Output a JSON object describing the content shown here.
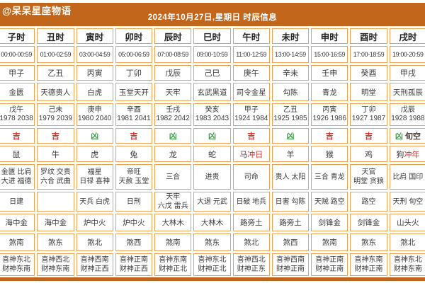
{
  "header": {
    "logo": "@呆呆星座物语",
    "title": "2024年10月27日,星期日 时辰信息"
  },
  "colors": {
    "accent_orange": "#c2661c",
    "border_orange": "#f0a055",
    "ji_red": "#d5332b",
    "xiong_green": "#3fa047"
  },
  "table": {
    "columns": [
      {
        "name": "子时",
        "time": "00:00-00:59",
        "ganzhi": "甲子",
        "star": "金匮",
        "year_ganzhi": "戊午",
        "years": "1978 2038",
        "luck": "吉",
        "luck_type": "ji",
        "luck_extra": "",
        "zodiac": "鼠",
        "zodiac_extra": "",
        "auspicious": [
          "金匮 比肩",
          "大进 福德"
        ],
        "inauspicious": [
          "日建"
        ],
        "nayin": "海中金",
        "sha": "煞南",
        "directions": [
          "喜神东北",
          "财神东南"
        ]
      },
      {
        "name": "丑时",
        "time": "01:00-02:59",
        "ganzhi": "乙丑",
        "star": "天德贵人",
        "year_ganzhi": "己未",
        "years": "1979 2039",
        "luck": "吉",
        "luck_type": "ji",
        "luck_extra": "",
        "zodiac": "牛",
        "zodiac_extra": "",
        "auspicious": [
          "罗纹 交贵",
          "六合 武曲"
        ],
        "inauspicious": [],
        "nayin": "海中金",
        "sha": "煞东",
        "directions": [
          "喜神西北",
          "财神东南"
        ]
      },
      {
        "name": "寅时",
        "time": "03:00-04:59",
        "ganzhi": "丙寅",
        "star": "白虎",
        "year_ganzhi": "庚申",
        "years": "1980 2040",
        "luck": "凶",
        "luck_type": "xiong",
        "luck_extra": "",
        "zodiac": "虎",
        "zodiac_extra": "",
        "auspicious": [
          "福星",
          "日禄 喜神"
        ],
        "inauspicious": [
          "天兵 白虎"
        ],
        "nayin": "炉中火",
        "sha": "煞北",
        "directions": [
          "喜神西南",
          "财神正西"
        ]
      },
      {
        "name": "卯时",
        "time": "05:00-06:59",
        "ganzhi": "丁卯",
        "star": "玉堂天开",
        "year_ganzhi": "辛酉",
        "years": "1981 2041",
        "luck": "吉",
        "luck_type": "ji",
        "luck_extra": "",
        "zodiac": "兔",
        "zodiac_extra": "",
        "auspicious": [
          "帝旺",
          "天赦 玉堂"
        ],
        "inauspicious": [
          "日刑"
        ],
        "nayin": "炉中火",
        "sha": "煞西",
        "directions": [
          "喜神正南",
          "财神正西"
        ]
      },
      {
        "name": "辰时",
        "time": "07:00-08:59",
        "ganzhi": "戊辰",
        "star": "天牢",
        "year_ganzhi": "壬戌",
        "years": "1982 2042",
        "luck": "凶",
        "luck_type": "xiong",
        "luck_extra": "",
        "zodiac": "龙",
        "zodiac_extra": "",
        "auspicious": [
          "三合"
        ],
        "inauspicious": [
          "天牢",
          "六戊 雷兵"
        ],
        "nayin": "大林木",
        "sha": "煞南",
        "directions": [
          "喜神东南",
          "财神正北"
        ]
      },
      {
        "name": "巳时",
        "time": "09:00-10:59",
        "ganzhi": "己巳",
        "star": "玄武黑道",
        "year_ganzhi": "癸亥",
        "years": "1983 2043",
        "luck": "凶",
        "luck_type": "xiong",
        "luck_extra": "",
        "zodiac": "蛇",
        "zodiac_extra": "",
        "auspicious": [
          "进贵"
        ],
        "inauspicious": [
          "大退 元武"
        ],
        "nayin": "大林木",
        "sha": "煞东",
        "directions": [
          "喜神东北",
          "财神正北"
        ]
      },
      {
        "name": "午时",
        "time": "11:00-12:59",
        "ganzhi": "庚午",
        "star": "司令金星",
        "year_ganzhi": "甲子",
        "years": "1924 1984",
        "luck": "吉",
        "luck_type": "ji",
        "luck_extra": "",
        "zodiac": "马",
        "zodiac_extra": "冲日",
        "auspicious": [
          "司命"
        ],
        "inauspicious": [
          "日破 地兵"
        ],
        "nayin": "路旁土",
        "sha": "煞北",
        "directions": [
          "喜神西北",
          "财神正东"
        ]
      },
      {
        "name": "未时",
        "time": "13:00-14:59",
        "ganzhi": "辛未",
        "star": "勾陈",
        "year_ganzhi": "乙丑",
        "years": "1925 1985",
        "luck": "凶",
        "luck_type": "xiong",
        "luck_extra": "",
        "zodiac": "羊",
        "zodiac_extra": "",
        "auspicious": [
          "贵人 太阳"
        ],
        "inauspicious": [
          "日害 勾陈"
        ],
        "nayin": "路旁土",
        "sha": "煞西",
        "directions": [
          "喜神西南",
          "财神正南"
        ]
      },
      {
        "name": "申时",
        "time": "15:00-16:59",
        "ganzhi": "壬申",
        "star": "青龙",
        "year_ganzhi": "丙寅",
        "years": "1926 1986",
        "luck": "吉",
        "luck_type": "ji",
        "luck_extra": "",
        "zodiac": "猴",
        "zodiac_extra": "",
        "auspicious": [
          "三合 青龙"
        ],
        "inauspicious": [
          "天贼 路空"
        ],
        "nayin": "剑锋金",
        "sha": "煞南",
        "directions": [
          "喜神正南",
          "财神正南"
        ]
      },
      {
        "name": "酉时",
        "time": "17:00-18:59",
        "ganzhi": "癸酉",
        "star": "明堂",
        "year_ganzhi": "丁卯",
        "years": "1927 1987",
        "luck": "吉",
        "luck_type": "ji",
        "luck_extra": "",
        "zodiac": "鸡",
        "zodiac_extra": "",
        "auspicious": [
          "天官",
          "明堂 贪狼"
        ],
        "inauspicious": [
          "路空"
        ],
        "nayin": "剑锋金",
        "sha": "煞东",
        "directions": [
          "喜神东南",
          "财神正南"
        ]
      },
      {
        "name": "戌时",
        "time": "19:00-20:59",
        "ganzhi": "甲戌",
        "star": "天刑孤辰",
        "year_ganzhi": "戊辰",
        "years": "1928 1988",
        "luck": "凶",
        "luck_type": "xiong",
        "luck_extra": "旬空",
        "zodiac": "狗",
        "zodiac_extra": "冲年",
        "auspicious": [
          "比肩 国印"
        ],
        "inauspicious": [
          "天刑 旬空"
        ],
        "nayin": "山头火",
        "sha": "煞北",
        "directions": [
          "喜神东北",
          "财神东南"
        ]
      }
    ]
  }
}
